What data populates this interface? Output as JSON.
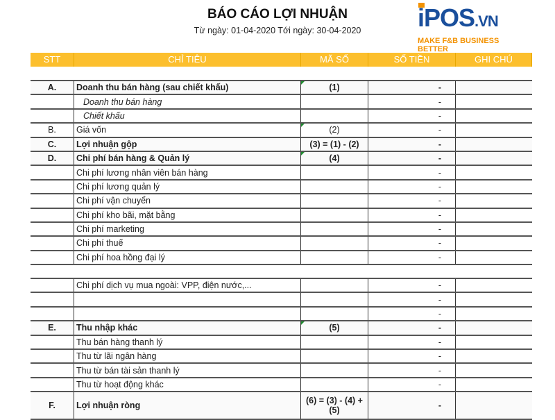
{
  "title": "BÁO CÁO LỢI NHUẬN",
  "subtitle": "Từ ngày: 01-04-2020 Tới ngày: 30-04-2020",
  "logo": {
    "main": "iPOS",
    "suffix": ".VN",
    "tagline": "MAKE F&B BUSINESS BETTER"
  },
  "colors": {
    "header_bg": "#fcbf2d",
    "logo_blue": "#1a4f9c",
    "logo_orange": "#f39200"
  },
  "columns": [
    "STT",
    "CHỈ TIÊU",
    "MÃ SỐ",
    "SỐ TIỀN",
    "GHI CHÚ"
  ],
  "group1": [
    {
      "stt": "A.",
      "label": "Doanh thu bán hàng (sau chiết khấu)",
      "code": "(1)",
      "amount": "-",
      "note": "",
      "style": "bold"
    },
    {
      "stt": "",
      "label": "Doanh thu bán hàng",
      "code": "",
      "amount": "-",
      "note": "",
      "style": "italic"
    },
    {
      "stt": "",
      "label": "Chiết khấu",
      "code": "",
      "amount": "-",
      "note": "",
      "style": "italic"
    },
    {
      "stt": "B.",
      "label": "Giá vốn",
      "code": "(2)",
      "amount": "-",
      "note": "",
      "style": ""
    },
    {
      "stt": "C.",
      "label": "Lợi nhuận gộp",
      "code": "(3) = (1) - (2)",
      "amount": "-",
      "note": "",
      "style": "bold"
    },
    {
      "stt": "D.",
      "label": "Chi phí bán hàng & Quản lý",
      "code": "(4)",
      "amount": "-",
      "note": "",
      "style": "bold"
    },
    {
      "stt": "",
      "label": "Chi phí lương nhân viên bán hàng",
      "code": "",
      "amount": "-",
      "note": "",
      "style": ""
    },
    {
      "stt": "",
      "label": "Chi phí lương quản lý",
      "code": "",
      "amount": "-",
      "note": "",
      "style": ""
    },
    {
      "stt": "",
      "label": "Chi phí vận chuyển",
      "code": "",
      "amount": "-",
      "note": "",
      "style": ""
    },
    {
      "stt": "",
      "label": "Chi phí kho bãi, mặt bằng",
      "code": "",
      "amount": "-",
      "note": "",
      "style": ""
    },
    {
      "stt": "",
      "label": "Chi phí marketing",
      "code": "",
      "amount": "-",
      "note": "",
      "style": ""
    },
    {
      "stt": "",
      "label": "Chi phí thuế",
      "code": "",
      "amount": "-",
      "note": "",
      "style": ""
    },
    {
      "stt": "",
      "label": "Chi phí hoa hồng đại lý",
      "code": "",
      "amount": "-",
      "note": "",
      "style": ""
    }
  ],
  "group2": [
    {
      "stt": "",
      "label": "Chi phí dịch vụ mua ngoài: VPP, điện nước,...",
      "code": "",
      "amount": "-",
      "note": "",
      "style": ""
    },
    {
      "stt": "",
      "label": "",
      "code": "",
      "amount": "-",
      "note": "",
      "style": ""
    },
    {
      "stt": "",
      "label": "",
      "code": "",
      "amount": "-",
      "note": "",
      "style": ""
    },
    {
      "stt": "E.",
      "label": "Thu nhập khác",
      "code": "(5)",
      "amount": "-",
      "note": "",
      "style": "bold"
    },
    {
      "stt": "",
      "label": "Thu bán hàng thanh lý",
      "code": "",
      "amount": "-",
      "note": "",
      "style": ""
    },
    {
      "stt": "",
      "label": "Thu từ lãi ngân hàng",
      "code": "",
      "amount": "-",
      "note": "",
      "style": ""
    },
    {
      "stt": "",
      "label": "Thu từ bán tài sản thanh lý",
      "code": "",
      "amount": "-",
      "note": "",
      "style": ""
    },
    {
      "stt": "",
      "label": "Thu từ hoạt động khác",
      "code": "",
      "amount": "-",
      "note": "",
      "style": ""
    },
    {
      "stt": "F.",
      "label": "Lợi nhuận ròng",
      "code": "(6) = (3) - (4) + (5)",
      "amount": "-",
      "note": "",
      "style": "bold tall"
    }
  ]
}
